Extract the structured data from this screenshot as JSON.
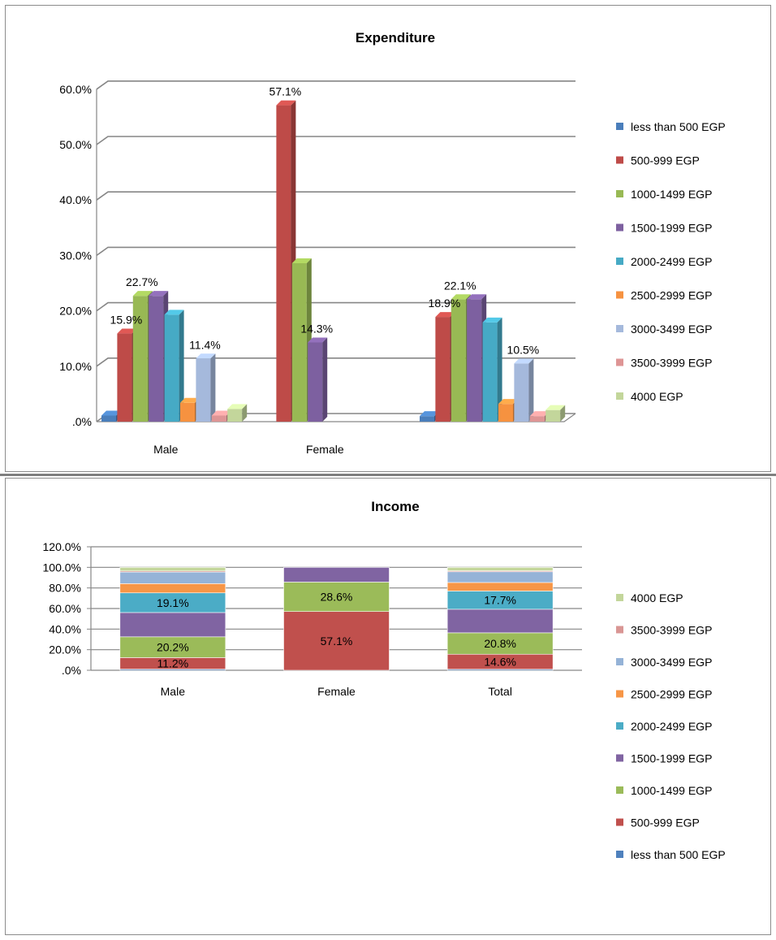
{
  "chart_data": [
    {
      "type": "bar",
      "title": "Expenditure",
      "categories": [
        "Male",
        "Female",
        ""
      ],
      "ylim": [
        0,
        60
      ],
      "yticks": [
        ".0%",
        "10.0%",
        "20.0%",
        "30.0%",
        "40.0%",
        "50.0%",
        "60.0%"
      ],
      "grid": true,
      "legend_position": "right",
      "series": [
        {
          "name": "less than 500 EGP",
          "color": "#4a7ebb",
          "values": [
            1.1,
            0,
            1.0
          ]
        },
        {
          "name": "500-999 EGP",
          "color": "#be4b48",
          "values": [
            15.9,
            57.1,
            18.9
          ]
        },
        {
          "name": "1000-1499 EGP",
          "color": "#98b954",
          "values": [
            22.7,
            28.6,
            22.1
          ]
        },
        {
          "name": "1500-1999 EGP",
          "color": "#7d60a0",
          "values": [
            22.7,
            14.3,
            22.1
          ]
        },
        {
          "name": "2000-2499 EGP",
          "color": "#46aac5",
          "values": [
            19.3,
            0,
            17.9
          ]
        },
        {
          "name": "2500-2999 EGP",
          "color": "#f69240",
          "values": [
            3.4,
            0,
            3.2
          ]
        },
        {
          "name": "3000-3499 EGP",
          "color": "#a5b9dc",
          "values": [
            11.4,
            0,
            10.5
          ]
        },
        {
          "name": "3500-3999 EGP",
          "color": "#de9595",
          "values": [
            1.1,
            0,
            1.0
          ]
        },
        {
          "name": "4000 EGP",
          "color": "#c3d69b",
          "values": [
            2.3,
            0,
            2.1
          ]
        }
      ],
      "data_labels": [
        {
          "category": 0,
          "series": 1,
          "text": "15.9%"
        },
        {
          "category": 0,
          "series": 2,
          "text": "22.7%"
        },
        {
          "category": 0,
          "series": 6,
          "text": "11.4%"
        },
        {
          "category": 1,
          "series": 1,
          "text": "57.1%"
        },
        {
          "category": 1,
          "series": 3,
          "text": "14.3%"
        },
        {
          "category": 2,
          "series": 1,
          "text": "18.9%"
        },
        {
          "category": 2,
          "series": 2,
          "text": "22.1%"
        },
        {
          "category": 2,
          "series": 6,
          "text": "10.5%"
        }
      ]
    },
    {
      "type": "bar",
      "stacked": true,
      "title": "Income",
      "categories": [
        "Male",
        "Female",
        "Total"
      ],
      "ylim": [
        0,
        120
      ],
      "yticks": [
        ".0%",
        "20.0%",
        "40.0%",
        "60.0%",
        "80.0%",
        "100.0%",
        "120.0%"
      ],
      "grid": true,
      "legend_position": "right",
      "series": [
        {
          "name": "less than 500 EGP",
          "color": "#4f81bd",
          "values": [
            1.1,
            0,
            1.0
          ]
        },
        {
          "name": "500-999 EGP",
          "color": "#c0504d",
          "values": [
            11.2,
            57.1,
            14.6
          ]
        },
        {
          "name": "1000-1499 EGP",
          "color": "#9bbb59",
          "values": [
            20.2,
            28.6,
            20.8
          ]
        },
        {
          "name": "1500-1999 EGP",
          "color": "#8064a2",
          "values": [
            23.6,
            14.3,
            22.9
          ]
        },
        {
          "name": "2000-2499 EGP",
          "color": "#4bacc6",
          "values": [
            19.1,
            0,
            17.7
          ]
        },
        {
          "name": "2500-2999 EGP",
          "color": "#f79646",
          "values": [
            9.0,
            0,
            8.3
          ]
        },
        {
          "name": "3000-3499 EGP",
          "color": "#95b3d7",
          "values": [
            11.2,
            0,
            10.4
          ]
        },
        {
          "name": "3500-3999 EGP",
          "color": "#d99694",
          "values": [
            1.1,
            0,
            1.0
          ]
        },
        {
          "name": "4000 EGP",
          "color": "#c3d69b",
          "values": [
            3.5,
            0,
            3.3
          ]
        }
      ],
      "data_labels": [
        {
          "category": 0,
          "series": 1,
          "text": "11.2%"
        },
        {
          "category": 0,
          "series": 2,
          "text": "20.2%"
        },
        {
          "category": 0,
          "series": 4,
          "text": "19.1%"
        },
        {
          "category": 1,
          "series": 1,
          "text": "57.1%"
        },
        {
          "category": 1,
          "series": 2,
          "text": "28.6%"
        },
        {
          "category": 2,
          "series": 1,
          "text": "14.6%"
        },
        {
          "category": 2,
          "series": 2,
          "text": "20.8%"
        },
        {
          "category": 2,
          "series": 4,
          "text": "17.7%"
        }
      ]
    }
  ]
}
